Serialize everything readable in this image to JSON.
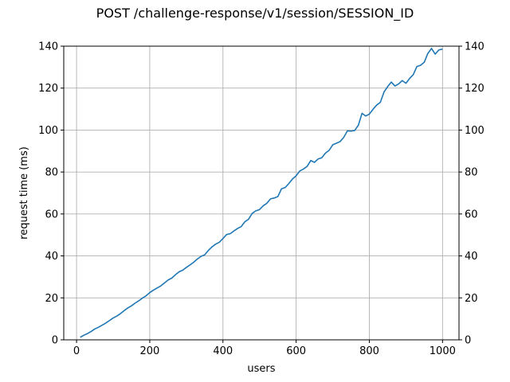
{
  "chart_data": {
    "type": "line",
    "title": "POST /challenge-response/v1/session/SESSION_ID",
    "xlabel": "users",
    "ylabel": "request time (ms)",
    "xlim": [
      -35,
      1045
    ],
    "ylim": [
      0,
      140
    ],
    "grid": true,
    "xticks": [
      0,
      200,
      400,
      600,
      800,
      1000
    ],
    "yticks": [
      0,
      20,
      40,
      60,
      80,
      100,
      120,
      140
    ],
    "colors": {
      "line": "#1f77b4",
      "ylabel": "#1f77b4",
      "grid": "#b0b0b0",
      "axis": "#000000"
    },
    "series": [
      {
        "name": "request time",
        "x": [
          10,
          20,
          30,
          40,
          50,
          60,
          70,
          80,
          90,
          100,
          110,
          120,
          130,
          140,
          150,
          160,
          170,
          180,
          190,
          200,
          210,
          220,
          230,
          240,
          250,
          260,
          270,
          280,
          290,
          300,
          310,
          320,
          330,
          340,
          350,
          360,
          370,
          380,
          390,
          400,
          410,
          420,
          430,
          440,
          450,
          460,
          470,
          480,
          490,
          500,
          510,
          520,
          530,
          540,
          550,
          560,
          570,
          580,
          590,
          600,
          610,
          620,
          630,
          640,
          650,
          660,
          670,
          680,
          690,
          700,
          710,
          720,
          730,
          740,
          750,
          760,
          770,
          780,
          790,
          800,
          810,
          820,
          830,
          840,
          850,
          860,
          870,
          880,
          890,
          900,
          910,
          920,
          930,
          940,
          950,
          960,
          970,
          980,
          990,
          1000
        ],
        "y": [
          1.2,
          2.2,
          3.0,
          4.0,
          5.2,
          6.0,
          7.0,
          8.0,
          9.2,
          10.4,
          11.3,
          12.5,
          13.9,
          15.2,
          16.2,
          17.5,
          18.6,
          19.9,
          21.0,
          22.5,
          23.7,
          24.7,
          25.7,
          27.1,
          28.5,
          29.4,
          31.0,
          32.4,
          33.2,
          34.5,
          35.7,
          37.0,
          38.5,
          39.8,
          40.5,
          42.6,
          44.3,
          45.6,
          46.5,
          48.3,
          50.2,
          50.6,
          51.9,
          53.1,
          54.0,
          56.3,
          57.5,
          60.3,
          61.5,
          62.1,
          63.9,
          65.1,
          67.2,
          67.6,
          68.3,
          72.0,
          72.6,
          74.5,
          76.7,
          78.2,
          80.5,
          81.4,
          82.7,
          85.5,
          84.6,
          86.2,
          86.8,
          89.0,
          90.3,
          93.0,
          93.7,
          94.5,
          96.5,
          99.6,
          99.5,
          99.8,
          102.3,
          108.0,
          106.7,
          107.6,
          109.9,
          111.9,
          113.2,
          118.1,
          120.7,
          122.9,
          121.0,
          122.0,
          123.6,
          122.3,
          124.6,
          126.4,
          130.3,
          130.9,
          132.3,
          136.6,
          138.9,
          136.2,
          138.2,
          138.6
        ]
      }
    ]
  }
}
